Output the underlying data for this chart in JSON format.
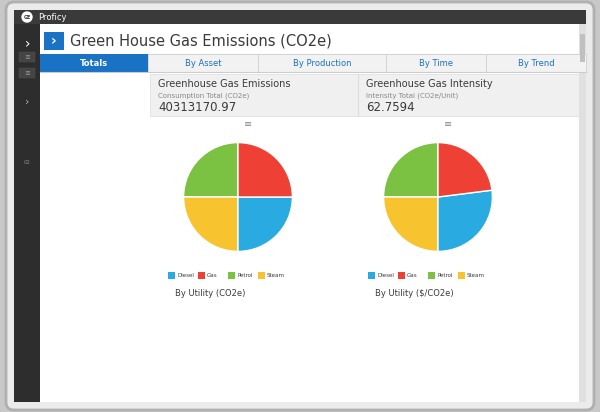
{
  "title": "Green House Gas Emissions (CO2e)",
  "app_name": "Proficy",
  "tabs": [
    "Totals",
    "By Asset",
    "By Production",
    "By Time",
    "By Trend"
  ],
  "active_tab": "Totals",
  "panel1_title": "Greenhouse Gas Emissions",
  "panel1_subtitle": "Consumption Total (CO2e)",
  "panel1_value": "40313170.97",
  "panel2_title": "Greenhouse Gas Intensity",
  "panel2_subtitle": "Intensity Total (CO2e/Unit)",
  "panel2_value": "62.7594",
  "pie1_values": [
    25,
    25,
    25,
    25
  ],
  "pie1_colors": [
    "#7bc142",
    "#f7c32e",
    "#29abe2",
    "#ee4035"
  ],
  "pie1_startangle": 90,
  "pie2_values": [
    25,
    25,
    27,
    23
  ],
  "pie2_colors": [
    "#7bc142",
    "#f7c32e",
    "#29abe2",
    "#ee4035"
  ],
  "pie2_startangle": 90,
  "legend_labels": [
    "Diesel",
    "Gas",
    "Petrol",
    "Steam"
  ],
  "legend_colors": [
    "#29abe2",
    "#ee4035",
    "#7bc142",
    "#f7c32e"
  ],
  "pie1_title": "By Utility (CO2e)",
  "pie2_title": "By Utility ($/CO2e)",
  "bg_outer": "#c8c8c8",
  "bg_device": "#ebebeb",
  "bg_titlebar": "#3a3a3a",
  "bg_sidebar": "#2d2d2d",
  "bg_header": "#ffffff",
  "bg_tabs": "#f2f2f2",
  "bg_active_tab": "#1a72c4",
  "bg_panel": "#f0f0f0",
  "text_white": "#ffffff",
  "text_dark": "#3a3a3a",
  "text_gray": "#888888",
  "text_blue": "#1a72c4",
  "tab_border": "#cccccc"
}
